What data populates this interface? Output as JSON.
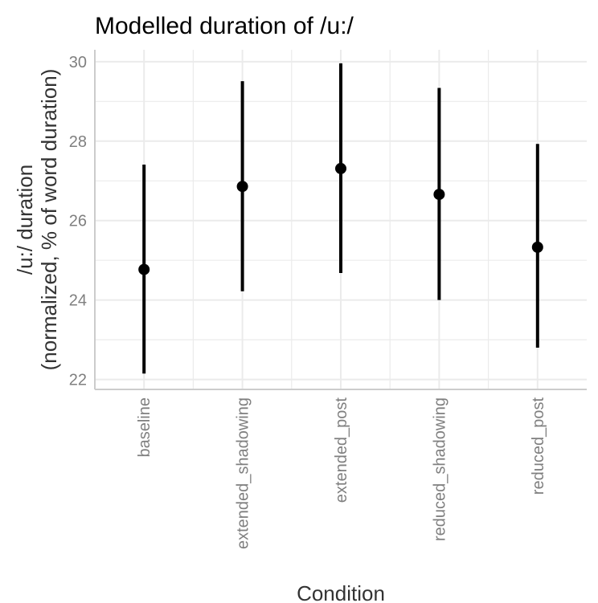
{
  "chart_data": {
    "type": "scatter",
    "title": "Modelled duration of /u:/",
    "xlabel": "Condition",
    "ylabel_lines": [
      "/u:/ duration",
      "(normalized, % of word duration)"
    ],
    "categories": [
      "baseline",
      "extended_shadowing",
      "extended_post",
      "reduced_shadowing",
      "reduced_post"
    ],
    "estimate": [
      24.77,
      26.86,
      27.31,
      26.66,
      25.33
    ],
    "lower": [
      22.15,
      24.22,
      24.68,
      24.0,
      22.8
    ],
    "upper": [
      27.41,
      29.51,
      29.96,
      29.34,
      27.93
    ],
    "ylim": [
      21.75,
      30.3
    ],
    "yticks": [
      22,
      24,
      26,
      28,
      30
    ],
    "grid": true,
    "colors": {
      "point": "#000000",
      "grid": "#ebebeb",
      "axis_line": "#cccccc"
    }
  }
}
